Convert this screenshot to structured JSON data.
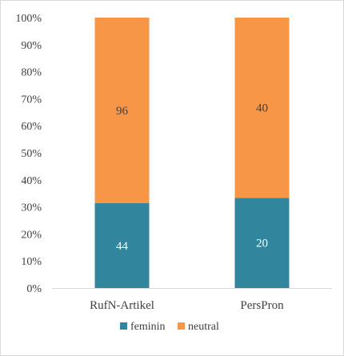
{
  "chart_data": {
    "type": "bar",
    "stacked": "percent",
    "categories": [
      "RufN-Artikel",
      "PersPron"
    ],
    "series": [
      {
        "name": "feminin",
        "values": [
          44,
          20
        ],
        "color": "#31859c"
      },
      {
        "name": "neutral",
        "values": [
          96,
          40
        ],
        "color": "#f79646"
      }
    ],
    "ylim": [
      0,
      100
    ],
    "yticks": [
      "0%",
      "10%",
      "20%",
      "30%",
      "40%",
      "50%",
      "60%",
      "70%",
      "80%",
      "90%",
      "100%"
    ],
    "grid": false,
    "legend_position": "bottom"
  }
}
